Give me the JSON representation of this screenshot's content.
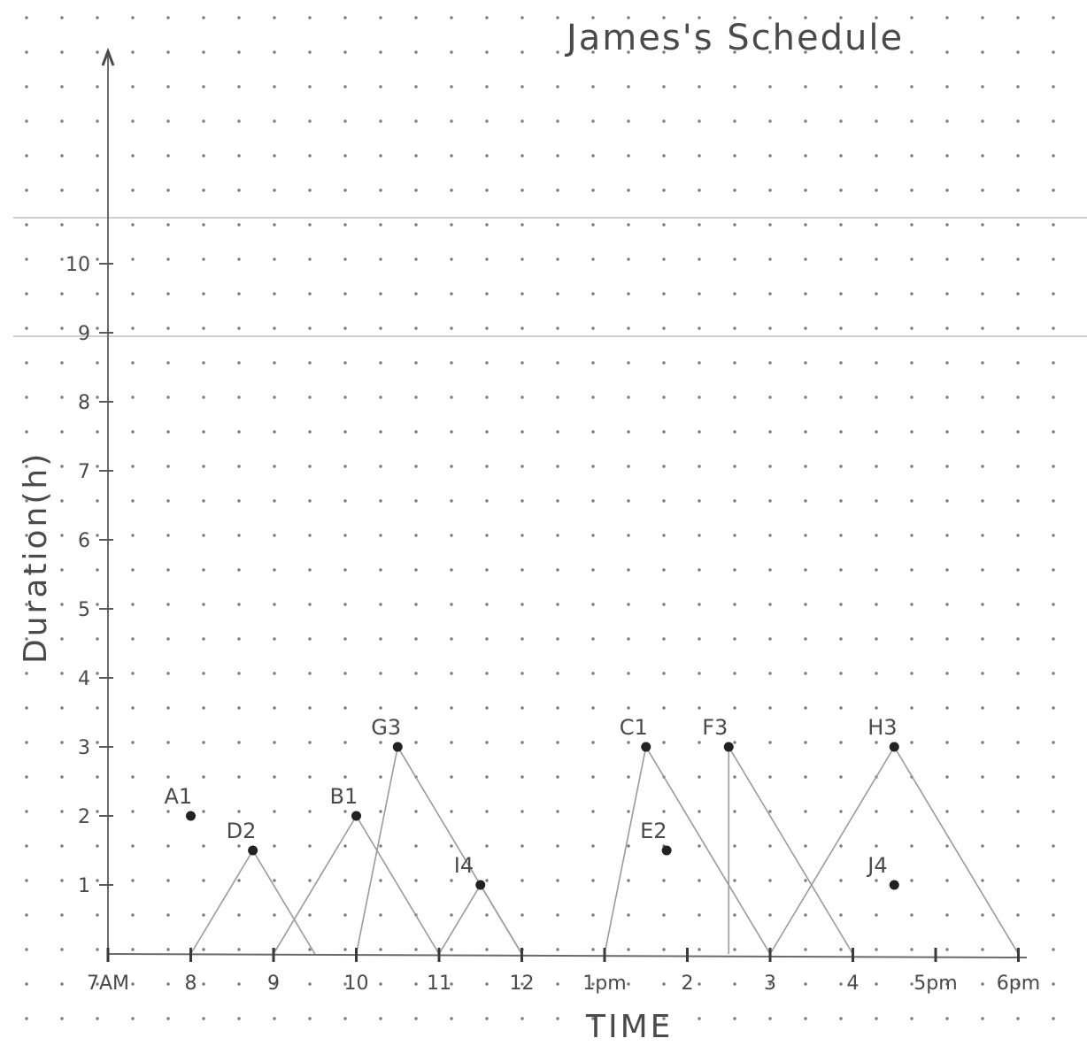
{
  "chart_data": {
    "type": "scatter",
    "title": "James's Schedule",
    "xlabel": "TIME",
    "ylabel": "Duration(h)",
    "x_tick_labels": [
      "7AM",
      "8",
      "9",
      "10",
      "11",
      "12",
      "1pm",
      "2",
      "3",
      "4",
      "5pm",
      "6pm"
    ],
    "x_tick_hours": [
      7,
      8,
      9,
      10,
      11,
      12,
      13,
      14,
      15,
      16,
      17,
      18
    ],
    "y_tick_labels": [
      "1",
      "2",
      "3",
      "4",
      "5",
      "6",
      "7",
      "8",
      "9",
      "10"
    ],
    "y_tick_values": [
      1,
      2,
      3,
      4,
      5,
      6,
      7,
      8,
      9,
      10
    ],
    "xlim": [
      7,
      18.7
    ],
    "ylim": [
      0,
      10.9
    ],
    "grid": "dot grid paper",
    "points": [
      {
        "label": "A1",
        "x": 8.0,
        "y": 2.0
      },
      {
        "label": "D2",
        "x": 8.75,
        "y": 1.5
      },
      {
        "label": "B1",
        "x": 10.0,
        "y": 2.0
      },
      {
        "label": "G3",
        "x": 10.5,
        "y": 3.0
      },
      {
        "label": "I4",
        "x": 11.5,
        "y": 1.0
      },
      {
        "label": "C1",
        "x": 13.5,
        "y": 3.0
      },
      {
        "label": "E2",
        "x": 13.75,
        "y": 1.5
      },
      {
        "label": "F3",
        "x": 14.5,
        "y": 3.0
      },
      {
        "label": "H3",
        "x": 16.5,
        "y": 3.0
      },
      {
        "label": "J4",
        "x": 16.5,
        "y": 1.0
      }
    ],
    "triangles": [
      {
        "start": 8.0,
        "peak_x": 8.75,
        "peak_y": 1.5,
        "end": 9.5
      },
      {
        "start": 9.0,
        "peak_x": 10.0,
        "peak_y": 2.0,
        "end": 11.0
      },
      {
        "start": 10.0,
        "peak_x": 10.5,
        "peak_y": 3.0,
        "end": 12.0
      },
      {
        "start": 11.0,
        "peak_x": 11.5,
        "peak_y": 1.0,
        "end": 12.0
      },
      {
        "start": 13.0,
        "peak_x": 13.5,
        "peak_y": 3.0,
        "end": 15.0
      },
      {
        "start": 14.5,
        "peak_x": 14.5,
        "peak_y": 3.0,
        "end": 16.0
      },
      {
        "start": 15.0,
        "peak_x": 16.5,
        "peak_y": 3.0,
        "end": 18.0
      }
    ]
  }
}
